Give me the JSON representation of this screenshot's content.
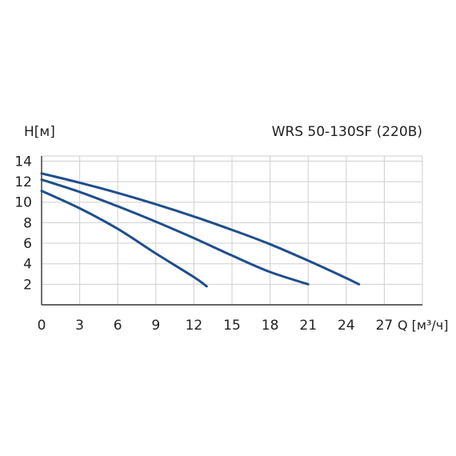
{
  "chart_data": {
    "type": "line",
    "title": "WRS 50-130SF (220В)",
    "ylabel": "H[м]",
    "xlabel": "Q [м³/ч]",
    "xlim": [
      0,
      30
    ],
    "ylim": [
      0,
      14.5
    ],
    "x_ticks": [
      "0",
      "3",
      "6",
      "9",
      "12",
      "15",
      "18",
      "21",
      "24",
      "27"
    ],
    "y_ticks": [
      "2",
      "4",
      "6",
      "8",
      "10",
      "12",
      "14"
    ],
    "grid": true,
    "legend": "none",
    "line_color": "#1f4e8c",
    "series": [
      {
        "x": [
          0,
          3,
          6,
          9,
          12,
          13
        ],
        "y": [
          11.1,
          9.4,
          7.4,
          5.0,
          2.7,
          1.8
        ]
      },
      {
        "x": [
          0,
          3,
          6,
          9,
          12,
          15,
          18,
          21
        ],
        "y": [
          12.2,
          11.0,
          9.6,
          8.1,
          6.5,
          4.8,
          3.2,
          2.0
        ]
      },
      {
        "x": [
          0,
          3,
          6,
          9,
          12,
          15,
          18,
          21,
          24,
          25
        ],
        "y": [
          12.8,
          11.9,
          10.9,
          9.8,
          8.6,
          7.3,
          5.9,
          4.3,
          2.6,
          2.0
        ]
      }
    ]
  }
}
